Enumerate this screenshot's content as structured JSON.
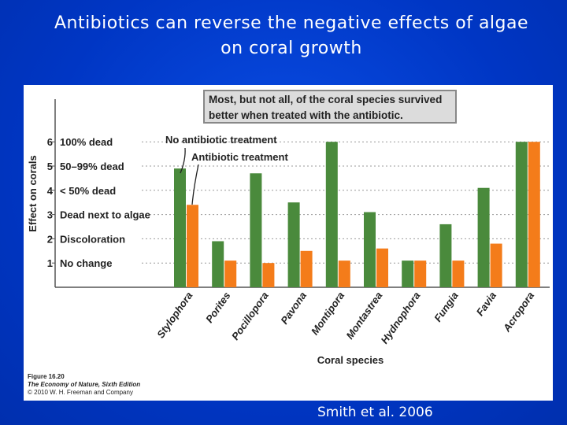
{
  "slide": {
    "title_line1": "Antibiotics can reverse the negative effects of algae",
    "title_line2": "on coral growth",
    "citation": "Smith et al. 2006"
  },
  "figure": {
    "callout_line1": "Most, but not all, of the coral species survived",
    "callout_line2": "better when treated with the antibiotic.",
    "caption_number": "Figure 16.20",
    "caption_book": "The Economy of Nature, Sixth Edition",
    "caption_copyright": "© 2010 W. H. Freeman and Company"
  },
  "chart_data": {
    "type": "bar",
    "ylabel": "Effect on corals",
    "xlabel": "Coral species",
    "ylim": [
      0,
      6
    ],
    "grid": true,
    "y_ticks": [
      {
        "value": 6,
        "number": "6",
        "label": "100% dead"
      },
      {
        "value": 5,
        "number": "5",
        "label": "50–99% dead"
      },
      {
        "value": 4,
        "number": "4",
        "label": "< 50% dead"
      },
      {
        "value": 3,
        "number": "3",
        "label": "Dead next to algae"
      },
      {
        "value": 2,
        "number": "2",
        "label": "Discoloration"
      },
      {
        "value": 1,
        "number": "1",
        "label": "No change"
      }
    ],
    "categories": [
      "Stylophora",
      "Porites",
      "Pocillopora",
      "Pavona",
      "Montipora",
      "Montastrea",
      "Hydnophora",
      "Fungia",
      "Favia",
      "Acropora"
    ],
    "series": [
      {
        "name": "No antibiotic treatment",
        "color": "#4a8a3c",
        "values": [
          4.9,
          1.9,
          4.7,
          3.5,
          6.0,
          3.1,
          1.1,
          2.6,
          4.1,
          6.0
        ]
      },
      {
        "name": "Antibiotic treatment",
        "color": "#f47c1a",
        "values": [
          3.4,
          1.1,
          1.0,
          1.5,
          1.1,
          1.6,
          1.1,
          1.1,
          1.8,
          6.0
        ]
      }
    ],
    "annotations": [
      "No antibiotic treatment",
      "Antibiotic treatment"
    ]
  }
}
